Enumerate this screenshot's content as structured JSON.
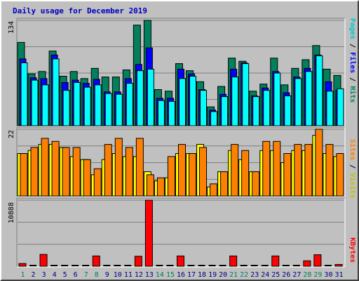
{
  "chart_data": {
    "type": "bar",
    "title": "Daily usage for December 2019",
    "categories": [
      "1",
      "2",
      "3",
      "4",
      "5",
      "6",
      "7",
      "8",
      "9",
      "10",
      "11",
      "12",
      "13",
      "14",
      "15",
      "16",
      "17",
      "18",
      "19",
      "20",
      "21",
      "22",
      "23",
      "24",
      "25",
      "26",
      "27",
      "28",
      "29",
      "30",
      "31"
    ],
    "weekend_days": [
      1,
      7,
      8,
      14,
      15,
      21,
      22,
      28,
      29
    ],
    "panels": [
      {
        "name": "hits_files_pages",
        "ymax_label": "134",
        "ymax": 134,
        "right_label": {
          "pages": "Pages",
          "sep1": " / ",
          "files": "Files",
          "sep2": " / ",
          "hits": "Hits"
        },
        "series": [
          {
            "name": "Hits",
            "color": "#00805c",
            "values": [
              106,
              66,
              69,
              95,
              63,
              69,
              60,
              73,
              62,
              62,
              71,
              128,
              134,
              46,
              44,
              79,
              70,
              56,
              24,
              50,
              86,
              82,
              44,
              53,
              86,
              52,
              73,
              84,
              102,
              72,
              64
            ]
          },
          {
            "name": "Files",
            "color": "#0000ff",
            "values": [
              85,
              61,
              60,
              90,
              55,
              58,
              54,
              59,
              43,
              43,
              60,
              78,
              99,
              35,
              35,
              72,
              66,
              46,
              20,
              40,
              72,
              80,
              38,
              48,
              69,
              42,
              62,
              73,
              90,
              56,
              45
            ]
          },
          {
            "name": "Pages",
            "color": "#00ffff",
            "values": [
              80,
              58,
              52,
              85,
              45,
              55,
              49,
              52,
              41,
              40,
              54,
              70,
              72,
              32,
              31,
              60,
              63,
              45,
              18,
              37,
              62,
              79,
              37,
              45,
              67,
              38,
              60,
              69,
              89,
              44,
              47
            ]
          }
        ]
      },
      {
        "name": "visits_sites",
        "ymax_label": "22",
        "ymax": 22,
        "right_label": {
          "sites": "Sites",
          "sep": " / ",
          "visits": "Visits"
        },
        "series": [
          {
            "name": "Visits",
            "color": "#ffff00",
            "values": [
              14,
              15,
              17,
              17,
              16,
              13,
              12,
              7,
              12,
              14,
              13,
              13,
              8,
              5,
              6,
              14,
              14,
              17,
              3,
              8,
              15,
              12,
              8,
              15,
              15,
              11,
              15,
              15,
              20,
              14,
              13
            ]
          },
          {
            "name": "Sites",
            "color": "#ff8000",
            "values": [
              14,
              16,
              19,
              18,
              16,
              16,
              12,
              9,
              17,
              19,
              16,
              19,
              7,
              6,
              13,
              17,
              14,
              16,
              4,
              8,
              17,
              15,
              8,
              18,
              18,
              14,
              17,
              17,
              22,
              17,
              14
            ]
          }
        ]
      },
      {
        "name": "kbytes",
        "ymax_label": "10888",
        "ymax": 10888,
        "right_label": {
          "kbytes": "KBytes"
        },
        "series": [
          {
            "name": "KBytes",
            "color": "#ff0000",
            "values": [
              450,
              0,
              1950,
              0,
              0,
              0,
              0,
              1700,
              0,
              0,
              0,
              1650,
              10888,
              0,
              0,
              1700,
              0,
              0,
              0,
              0,
              1700,
              0,
              0,
              0,
              1700,
              0,
              0,
              900,
              1900,
              0,
              300
            ]
          }
        ]
      }
    ]
  },
  "colors": {
    "background": "#c0c0c0",
    "title": "#0000c0",
    "weekday_label": "#000080",
    "weekend_label": "#00805c"
  }
}
